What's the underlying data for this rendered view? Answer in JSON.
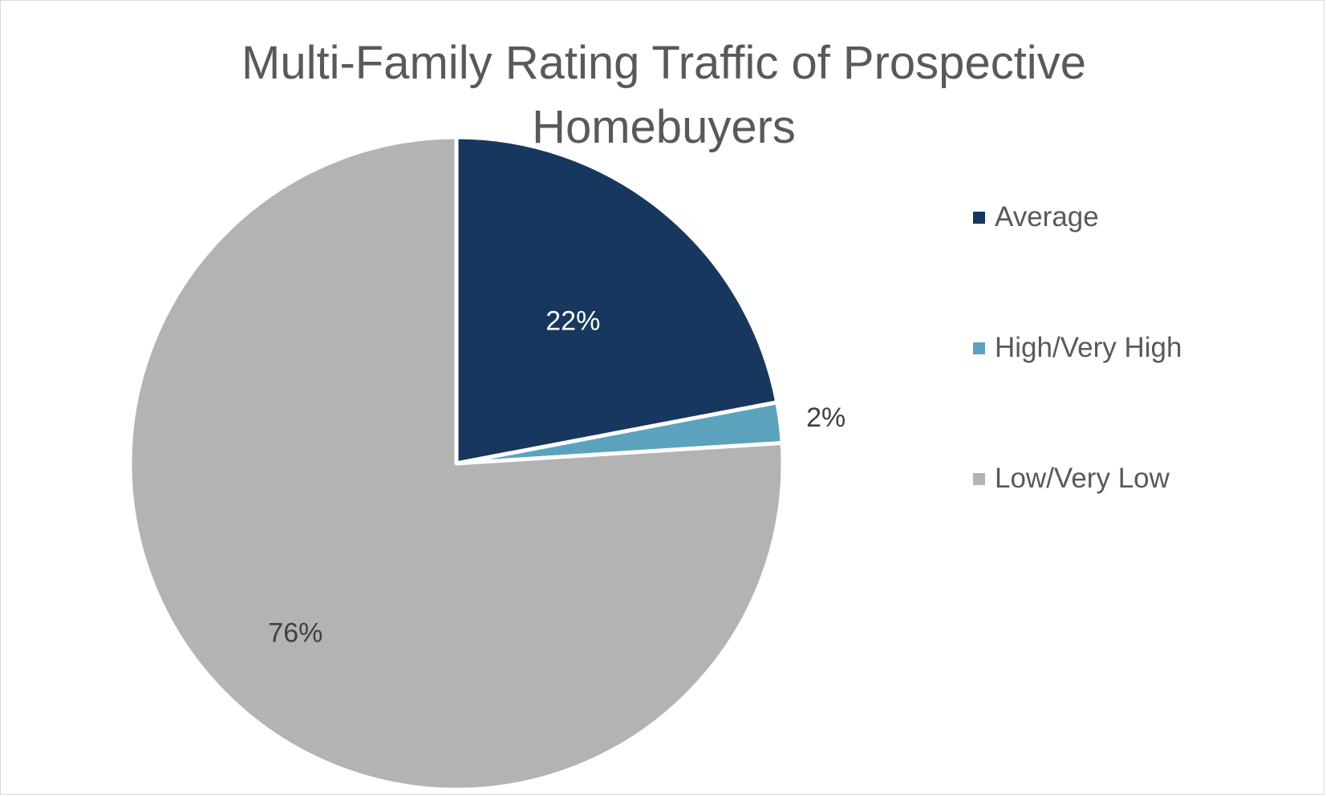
{
  "chart_data": {
    "type": "pie",
    "title": "Multi-Family Rating Traffic of Prospective Homebuyers",
    "title_lines": [
      "Multi-Family Rating Traffic of Prospective",
      "Homebuyers"
    ],
    "categories": [
      "Average",
      "High/Very High",
      "Low/Very Low"
    ],
    "values": [
      22,
      2,
      76
    ],
    "data_labels": [
      "22%",
      "2%",
      "76%"
    ],
    "colors": [
      "#17375e",
      "#5ba3bc",
      "#b3b3b3"
    ],
    "label_colors": [
      "#ffffff",
      "#404040",
      "#404040"
    ],
    "legend_position": "right",
    "start_angle_deg": 0,
    "direction": "clockwise"
  }
}
